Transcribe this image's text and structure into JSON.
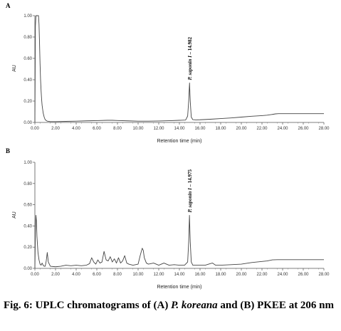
{
  "caption": {
    "part1": "Fig. 6: UPLC chromatograms of (A) ",
    "italic1": "P. koreana",
    "part2": " and (B) PKEE at 206 nm"
  },
  "chart_data": [
    {
      "type": "line",
      "panel": "A",
      "xlabel": "Retention time (min)",
      "ylabel": "AU",
      "xlim": [
        0,
        28
      ],
      "ylim": [
        0,
        1.0
      ],
      "xticks": [
        "0.00",
        "2.00",
        "4.00",
        "6.00",
        "8.00",
        "10.00",
        "12.00",
        "14.00",
        "16.00",
        "18.00",
        "20.00",
        "22.00",
        "24.00",
        "26.00",
        "28.00"
      ],
      "yticks": [
        "0.00",
        "0.20",
        "0.40",
        "0.60",
        "0.80",
        "1.00"
      ],
      "annotation": {
        "prefix": "P. saponin I",
        "suffix": " – 14.982",
        "x": 14.982,
        "y": 0.37
      },
      "series": [
        {
          "x": [
            0,
            0.05,
            0.1,
            0.15,
            0.2,
            0.25,
            0.3,
            0.35,
            0.4,
            0.45,
            0.5,
            0.55,
            0.6,
            0.65,
            0.7,
            0.8,
            0.9,
            1.0,
            1.2,
            1.5,
            2,
            3,
            4,
            5,
            6,
            7,
            7.5,
            8,
            9,
            10,
            11,
            12,
            13,
            14,
            14.6,
            14.8,
            14.9,
            14.982,
            15.05,
            15.15,
            15.3,
            15.6,
            16,
            17,
            18,
            19,
            20,
            21,
            22,
            22.5,
            23,
            23.3,
            23.6,
            24,
            25,
            26,
            27,
            28
          ],
          "y": [
            0.0,
            0.9,
            1.0,
            1.0,
            1.0,
            1.0,
            1.0,
            1.0,
            0.92,
            0.75,
            0.55,
            0.4,
            0.3,
            0.22,
            0.16,
            0.09,
            0.05,
            0.025,
            0.012,
            0.008,
            0.008,
            0.01,
            0.012,
            0.015,
            0.017,
            0.02,
            0.02,
            0.018,
            0.015,
            0.012,
            0.012,
            0.014,
            0.016,
            0.02,
            0.022,
            0.06,
            0.2,
            0.37,
            0.2,
            0.05,
            0.026,
            0.024,
            0.025,
            0.03,
            0.036,
            0.042,
            0.05,
            0.058,
            0.064,
            0.068,
            0.075,
            0.08,
            0.082,
            0.082,
            0.082,
            0.082,
            0.082,
            0.082
          ]
        }
      ]
    },
    {
      "type": "line",
      "panel": "B",
      "xlabel": "Retention time (min)",
      "ylabel": "AU",
      "xlim": [
        0,
        28
      ],
      "ylim": [
        0,
        1.0
      ],
      "xticks": [
        "0.00",
        "2.00",
        "4.00",
        "6.00",
        "8.00",
        "10.00",
        "12.00",
        "14.00",
        "16.00",
        "18.00",
        "20.00",
        "22.00",
        "24.00",
        "26.00",
        "28.00"
      ],
      "yticks": [
        "0.00",
        "0.20",
        "0.40",
        "0.60",
        "0.80",
        "1.00"
      ],
      "annotation": {
        "prefix": "P. saponin I",
        "suffix": " – 14.975",
        "x": 14.975,
        "y": 0.5
      },
      "series": [
        {
          "x": [
            0,
            0.05,
            0.1,
            0.15,
            0.2,
            0.3,
            0.4,
            0.5,
            0.6,
            0.7,
            0.8,
            0.9,
            1.0,
            1.1,
            1.2,
            1.3,
            1.5,
            2,
            2.5,
            3,
            3.5,
            4,
            4.5,
            5,
            5.3,
            5.5,
            5.7,
            5.9,
            6.1,
            6.3,
            6.5,
            6.7,
            6.9,
            7.1,
            7.3,
            7.5,
            7.7,
            7.9,
            8.1,
            8.3,
            8.5,
            8.7,
            8.9,
            9.1,
            9.5,
            10,
            10.2,
            10.4,
            10.5,
            10.6,
            10.8,
            11,
            11.5,
            12,
            12.5,
            13,
            13.5,
            14,
            14.5,
            14.8,
            14.9,
            14.975,
            15.05,
            15.15,
            15.3,
            15.6,
            16,
            16.5,
            17,
            17.2,
            17.5,
            18,
            19,
            20,
            21,
            22,
            22.5,
            23,
            23.5,
            24,
            25,
            26,
            27,
            28
          ],
          "y": [
            0.0,
            0.35,
            0.5,
            0.45,
            0.3,
            0.15,
            0.08,
            0.04,
            0.03,
            0.05,
            0.03,
            0.02,
            0.02,
            0.07,
            0.15,
            0.06,
            0.02,
            0.015,
            0.02,
            0.03,
            0.025,
            0.03,
            0.025,
            0.03,
            0.045,
            0.1,
            0.06,
            0.04,
            0.08,
            0.05,
            0.06,
            0.16,
            0.08,
            0.07,
            0.11,
            0.06,
            0.09,
            0.05,
            0.1,
            0.05,
            0.07,
            0.12,
            0.05,
            0.04,
            0.03,
            0.04,
            0.12,
            0.19,
            0.17,
            0.1,
            0.05,
            0.04,
            0.05,
            0.03,
            0.05,
            0.03,
            0.035,
            0.03,
            0.03,
            0.06,
            0.25,
            0.5,
            0.25,
            0.06,
            0.03,
            0.03,
            0.03,
            0.03,
            0.045,
            0.05,
            0.03,
            0.03,
            0.035,
            0.04,
            0.055,
            0.065,
            0.07,
            0.08,
            0.082,
            0.082,
            0.082,
            0.082,
            0.082,
            0.082
          ]
        }
      ]
    }
  ]
}
